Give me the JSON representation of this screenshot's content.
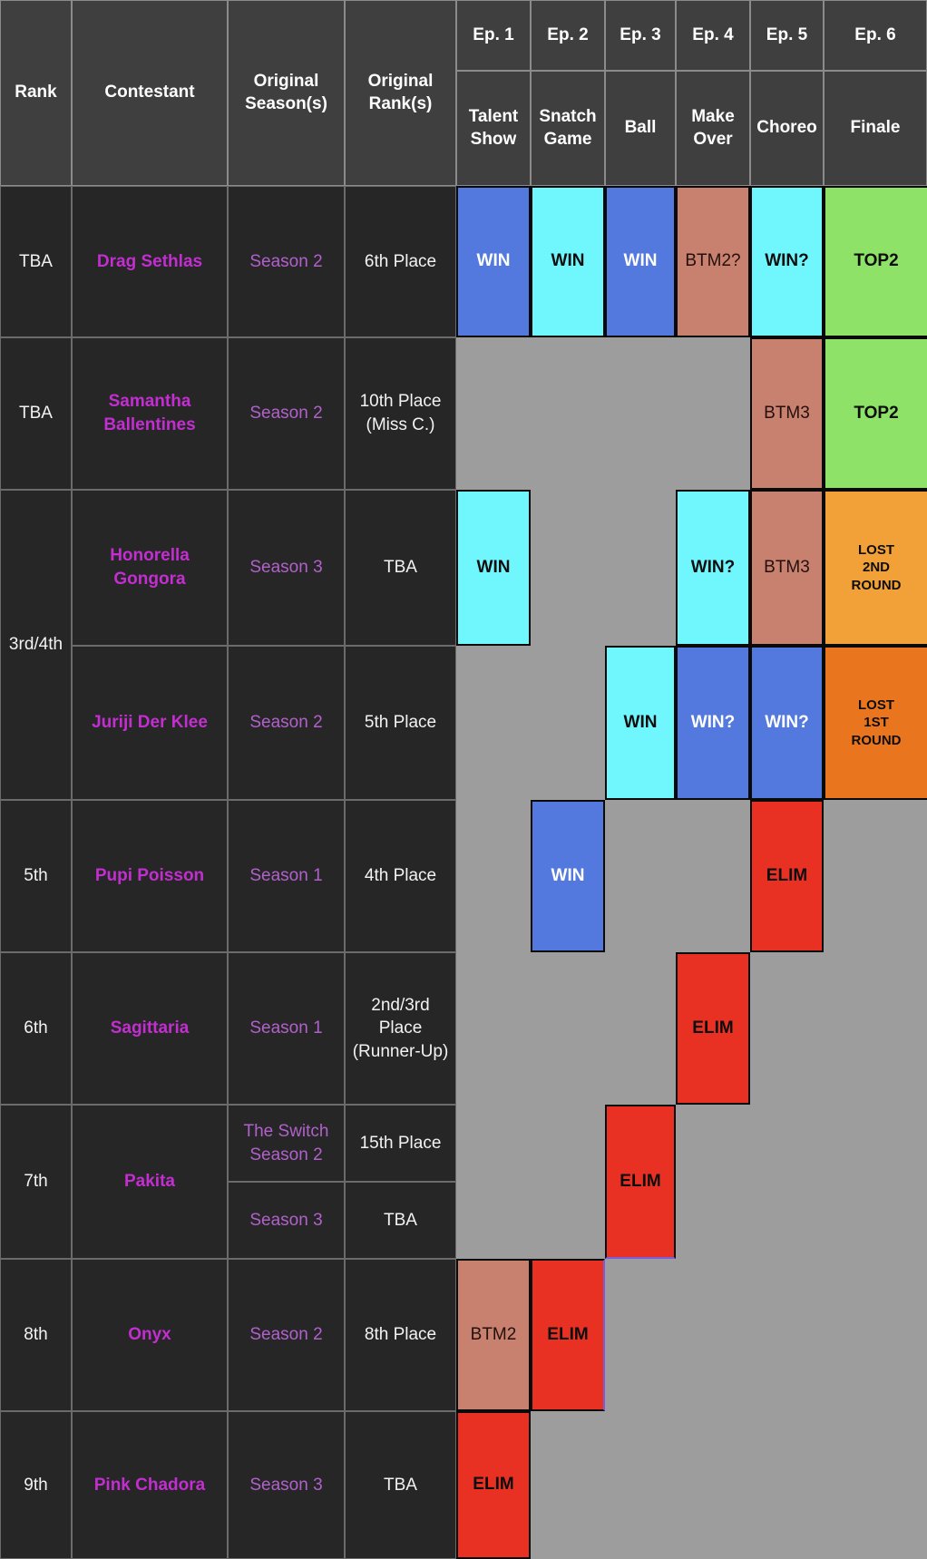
{
  "table": {
    "columns": [
      "Rank",
      "Contestant",
      "Original Season(s)",
      "Original Rank(s)"
    ],
    "episodes": [
      {
        "num": "Ep. 1",
        "name": "Talent Show"
      },
      {
        "num": "Ep. 2",
        "name": "Snatch Game"
      },
      {
        "num": "Ep. 3",
        "name": "Ball"
      },
      {
        "num": "Ep. 4",
        "name": "Make Over"
      },
      {
        "num": "Ep. 5",
        "name": "Choreo"
      },
      {
        "num": "Ep. 6",
        "name": "Finale"
      }
    ],
    "rows": [
      {
        "rank": "TBA",
        "contestant": "Drag Sethlas",
        "seasons": [
          {
            "season": "Season 2",
            "orig_rank": "6th Place"
          }
        ],
        "results": [
          {
            "ep": 1,
            "label": "WIN",
            "type": "win-blue"
          },
          {
            "ep": 2,
            "label": "WIN",
            "type": "win-cyan"
          },
          {
            "ep": 3,
            "label": "WIN",
            "type": "win-blue"
          },
          {
            "ep": 4,
            "label": "BTM2?",
            "type": "btm"
          },
          {
            "ep": 5,
            "label": "WIN?",
            "type": "win-cyan"
          },
          {
            "ep": 6,
            "label": "TOP2",
            "type": "top2"
          }
        ]
      },
      {
        "rank": "TBA",
        "contestant": "Samantha Ballentines",
        "seasons": [
          {
            "season": "Season 2",
            "orig_rank": "10th Place (Miss C.)"
          }
        ],
        "results": [
          {
            "ep": 5,
            "label": "BTM3",
            "type": "btm"
          },
          {
            "ep": 6,
            "label": "TOP2",
            "type": "top2"
          }
        ]
      },
      {
        "rank": "3rd/4th",
        "rank_grid_span": 2,
        "contestant": "Honorella Gongora",
        "seasons": [
          {
            "season": "Season 3",
            "orig_rank": "TBA"
          }
        ],
        "results": [
          {
            "ep": 1,
            "label": "WIN",
            "type": "win-cyan"
          },
          {
            "ep": 4,
            "label": "WIN?",
            "type": "win-cyan"
          },
          {
            "ep": 5,
            "label": "BTM3",
            "type": "btm"
          },
          {
            "ep": 6,
            "label": "LOST\n2ND\nROUND",
            "type": "lost2"
          }
        ]
      },
      {
        "rank": null,
        "contestant": "Juriji Der Klee",
        "seasons": [
          {
            "season": "Season 2",
            "orig_rank": "5th Place"
          }
        ],
        "results": [
          {
            "ep": 3,
            "label": "WIN",
            "type": "win-cyan"
          },
          {
            "ep": 4,
            "label": "WIN?",
            "type": "win-blue"
          },
          {
            "ep": 5,
            "label": "WIN?",
            "type": "win-blue"
          },
          {
            "ep": 6,
            "label": "LOST\n1ST\nROUND",
            "type": "lost1"
          }
        ]
      },
      {
        "rank": "5th",
        "contestant": "Pupi Poisson",
        "seasons": [
          {
            "season": "Season 1",
            "orig_rank": "4th Place"
          }
        ],
        "results": [
          {
            "ep": 2,
            "label": "WIN",
            "type": "win-blue"
          },
          {
            "ep": 5,
            "label": "ELIM",
            "type": "elim"
          }
        ]
      },
      {
        "rank": "6th",
        "contestant": "Sagittaria",
        "seasons": [
          {
            "season": "Season 1",
            "orig_rank": "2nd/3rd Place (Runner-Up)"
          }
        ],
        "results": [
          {
            "ep": 4,
            "label": "ELIM",
            "type": "elim"
          }
        ]
      },
      {
        "rank": "7th",
        "contestant": "Pakita",
        "seasons": [
          {
            "season": "The Switch Season 2",
            "orig_rank": "15th Place"
          },
          {
            "season": "Season 3",
            "orig_rank": "TBA"
          }
        ],
        "results": [
          {
            "ep": 3,
            "label": "ELIM",
            "type": "elim",
            "accent": "bottom"
          }
        ]
      },
      {
        "rank": "8th",
        "contestant": "Onyx",
        "seasons": [
          {
            "season": "Season 2",
            "orig_rank": "8th Place"
          }
        ],
        "results": [
          {
            "ep": 1,
            "label": "BTM2",
            "type": "btm"
          },
          {
            "ep": 2,
            "label": "ELIM",
            "type": "elim",
            "accent": "right"
          }
        ]
      },
      {
        "rank": "9th",
        "contestant": "Pink Chadora",
        "seasons": [
          {
            "season": "Season 3",
            "orig_rank": "TBA"
          }
        ],
        "results": [
          {
            "ep": 1,
            "label": "ELIM",
            "type": "elim"
          }
        ]
      }
    ],
    "colors": {
      "header_bg": "#3f3f3f",
      "cell_bg": "#262626",
      "safe_gray": "#9d9d9d",
      "win_blue": "#5379de",
      "win_cyan": "#70f7fd",
      "bottom_salmon": "#c8816f",
      "top2_green": "#8ee267",
      "lost_2nd_orange": "#f1a138",
      "lost_1st_orange": "#e9761e",
      "elim_red": "#e93123",
      "contestant_magenta": "#c32ed1",
      "season_purple": "#b161cb",
      "accent_purple": "#7a5cdb"
    }
  }
}
